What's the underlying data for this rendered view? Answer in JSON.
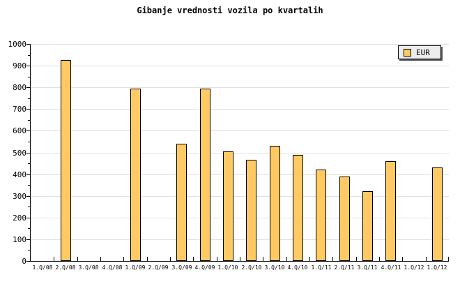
{
  "chart_data": {
    "type": "bar",
    "title": "Gibanje vrednosti vozila po kvartalih",
    "categories": [
      "1.Q/08",
      "2.Q/08",
      "3.Q/08",
      "4.Q/08",
      "1.Q/09",
      "2.Q/09",
      "3.Q/09",
      "4.Q/09",
      "1.Q/10",
      "2.Q/10",
      "3.Q/10",
      "4.Q/10",
      "1.Q/11",
      "2.Q/11",
      "3.Q/11",
      "4.Q/11",
      "1.Q/12",
      "1.Q/12"
    ],
    "values": [
      null,
      925,
      null,
      null,
      795,
      null,
      540,
      795,
      505,
      465,
      530,
      490,
      420,
      390,
      320,
      460,
      null,
      430
    ],
    "xlabel": "",
    "ylabel": "",
    "ylim": [
      0,
      1000
    ],
    "ytick_interval": 100,
    "yminor_tick_interval": 50,
    "grid": "horizontal-major",
    "legend": [
      {
        "name": "EUR",
        "color": "#FFCA63"
      }
    ],
    "legend_position": "top-right"
  },
  "colors": {
    "bar_fill": "#FFCA63",
    "bar_border": "#000000",
    "grid_line": "#E0E0E0",
    "axis_line": "#000000",
    "legend_bg": "#ECECEC",
    "legend_border": "#000000",
    "background": "#FFFFFF",
    "text": "#000000"
  }
}
